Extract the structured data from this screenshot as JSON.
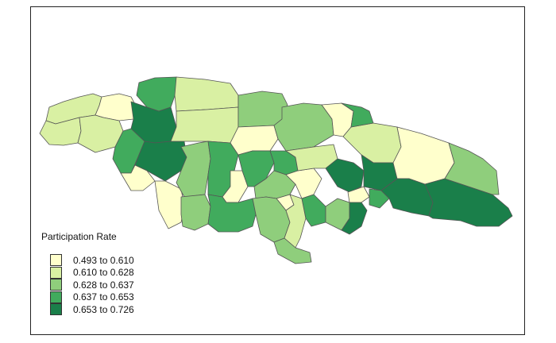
{
  "legend": {
    "title": "Participation Rate",
    "classes": [
      {
        "label": "0.493 to 0.610",
        "color": "#FFFFCC"
      },
      {
        "label": "0.610 to 0.628",
        "color": "#D9F0A3"
      },
      {
        "label": "0.628 to 0.637",
        "color": "#8FCE7C"
      },
      {
        "label": "0.637 to 0.653",
        "color": "#41AB5D"
      },
      {
        "label": "0.653 to 0.726",
        "color": "#1A7F4A"
      }
    ]
  },
  "border_color": "#555555",
  "regions": [
    {
      "name": "r1",
      "cls": 1
    },
    {
      "name": "r2",
      "cls": 0
    },
    {
      "name": "r3",
      "cls": 1
    },
    {
      "name": "r4",
      "cls": 1
    },
    {
      "name": "r5",
      "cls": 3
    },
    {
      "name": "r6",
      "cls": 3
    },
    {
      "name": "r7",
      "cls": 4
    },
    {
      "name": "r8",
      "cls": 4
    },
    {
      "name": "r9",
      "cls": 0
    },
    {
      "name": "r10",
      "cls": 0
    },
    {
      "name": "r11",
      "cls": 1
    },
    {
      "name": "r12",
      "cls": 1
    },
    {
      "name": "r13",
      "cls": 2
    },
    {
      "name": "r14",
      "cls": 2
    },
    {
      "name": "r15",
      "cls": 3
    },
    {
      "name": "r16",
      "cls": 0
    },
    {
      "name": "r17",
      "cls": 3
    },
    {
      "name": "r18",
      "cls": 2
    },
    {
      "name": "r19",
      "cls": 0
    },
    {
      "name": "r20",
      "cls": 2
    },
    {
      "name": "r21",
      "cls": 3
    },
    {
      "name": "r22",
      "cls": 3
    },
    {
      "name": "r23",
      "cls": 2
    },
    {
      "name": "r24",
      "cls": 0
    },
    {
      "name": "r25",
      "cls": 0
    },
    {
      "name": "r26",
      "cls": 2
    },
    {
      "name": "r27",
      "cls": 0
    },
    {
      "name": "r28",
      "cls": 1
    },
    {
      "name": "r29",
      "cls": 1
    },
    {
      "name": "r30",
      "cls": 2
    },
    {
      "name": "r31",
      "cls": 3
    },
    {
      "name": "r32",
      "cls": 1
    },
    {
      "name": "r33",
      "cls": 4
    },
    {
      "name": "r34",
      "cls": 4
    },
    {
      "name": "r35",
      "cls": 0
    },
    {
      "name": "r36",
      "cls": 0
    },
    {
      "name": "r37",
      "cls": 2
    },
    {
      "name": "r38",
      "cls": 4
    },
    {
      "name": "r39",
      "cls": 3
    },
    {
      "name": "r40",
      "cls": 4
    },
    {
      "name": "r41",
      "cls": 4
    },
    {
      "name": "r42",
      "cls": 2
    },
    {
      "name": "r43",
      "cls": 3
    }
  ]
}
